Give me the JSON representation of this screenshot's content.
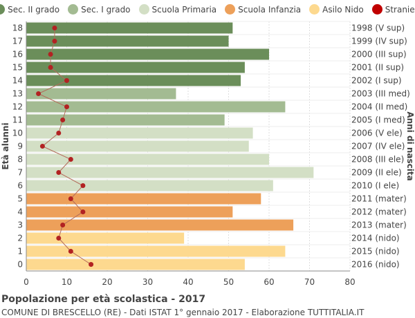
{
  "chart_data": {
    "type": "bar",
    "orientation": "horizontal",
    "title": "Popolazione per età scolastica - 2017",
    "subtitle": "COMUNE DI BRESCELLO (RE) - Dati ISTAT 1° gennaio 2017 - Elaborazione TUTTITALIA.IT",
    "ylabel_left": "Età alunni",
    "ylabel_right": "Anni di nascita",
    "xlim": [
      0,
      80
    ],
    "xticks": [
      0,
      10,
      20,
      30,
      40,
      50,
      60,
      70,
      80
    ],
    "grid": true,
    "legend_position": "top",
    "legend": [
      {
        "name": "Sec. II grado",
        "color": "#6b8e5a"
      },
      {
        "name": "Sec. I grado",
        "color": "#a3bb92"
      },
      {
        "name": "Scuola Primaria",
        "color": "#d3dfc5"
      },
      {
        "name": "Scuola Infanzia",
        "color": "#eda05a"
      },
      {
        "name": "Asilo Nido",
        "color": "#fdd98f"
      },
      {
        "name": "Stranieri",
        "color": "#c00000"
      }
    ],
    "rows": [
      {
        "age": "18",
        "birth": "1998 (V sup)",
        "value": 51,
        "stranieri": 7,
        "group": "Sec. II grado"
      },
      {
        "age": "17",
        "birth": "1999 (IV sup)",
        "value": 50,
        "stranieri": 7,
        "group": "Sec. II grado"
      },
      {
        "age": "16",
        "birth": "2000 (III sup)",
        "value": 60,
        "stranieri": 6,
        "group": "Sec. II grado"
      },
      {
        "age": "15",
        "birth": "2001 (II sup)",
        "value": 54,
        "stranieri": 6,
        "group": "Sec. II grado"
      },
      {
        "age": "14",
        "birth": "2002 (I sup)",
        "value": 53,
        "stranieri": 10,
        "group": "Sec. II grado"
      },
      {
        "age": "13",
        "birth": "2003 (III med)",
        "value": 37,
        "stranieri": 3,
        "group": "Sec. I grado"
      },
      {
        "age": "12",
        "birth": "2004 (II med)",
        "value": 64,
        "stranieri": 10,
        "group": "Sec. I grado"
      },
      {
        "age": "11",
        "birth": "2005 (I med)",
        "value": 49,
        "stranieri": 9,
        "group": "Sec. I grado"
      },
      {
        "age": "10",
        "birth": "2006 (V ele)",
        "value": 56,
        "stranieri": 8,
        "group": "Scuola Primaria"
      },
      {
        "age": "9",
        "birth": "2007 (IV ele)",
        "value": 55,
        "stranieri": 4,
        "group": "Scuola Primaria"
      },
      {
        "age": "8",
        "birth": "2008 (III ele)",
        "value": 60,
        "stranieri": 11,
        "group": "Scuola Primaria"
      },
      {
        "age": "7",
        "birth": "2009 (II ele)",
        "value": 71,
        "stranieri": 8,
        "group": "Scuola Primaria"
      },
      {
        "age": "6",
        "birth": "2010 (I ele)",
        "value": 61,
        "stranieri": 14,
        "group": "Scuola Primaria"
      },
      {
        "age": "5",
        "birth": "2011 (mater)",
        "value": 58,
        "stranieri": 11,
        "group": "Scuola Infanzia"
      },
      {
        "age": "4",
        "birth": "2012 (mater)",
        "value": 51,
        "stranieri": 14,
        "group": "Scuola Infanzia"
      },
      {
        "age": "3",
        "birth": "2013 (mater)",
        "value": 66,
        "stranieri": 9,
        "group": "Scuola Infanzia"
      },
      {
        "age": "2",
        "birth": "2014 (nido)",
        "value": 39,
        "stranieri": 8,
        "group": "Asilo Nido"
      },
      {
        "age": "1",
        "birth": "2015 (nido)",
        "value": 64,
        "stranieri": 11,
        "group": "Asilo Nido"
      },
      {
        "age": "0",
        "birth": "2016 (nido)",
        "value": 54,
        "stranieri": 16,
        "group": "Asilo Nido"
      }
    ]
  }
}
